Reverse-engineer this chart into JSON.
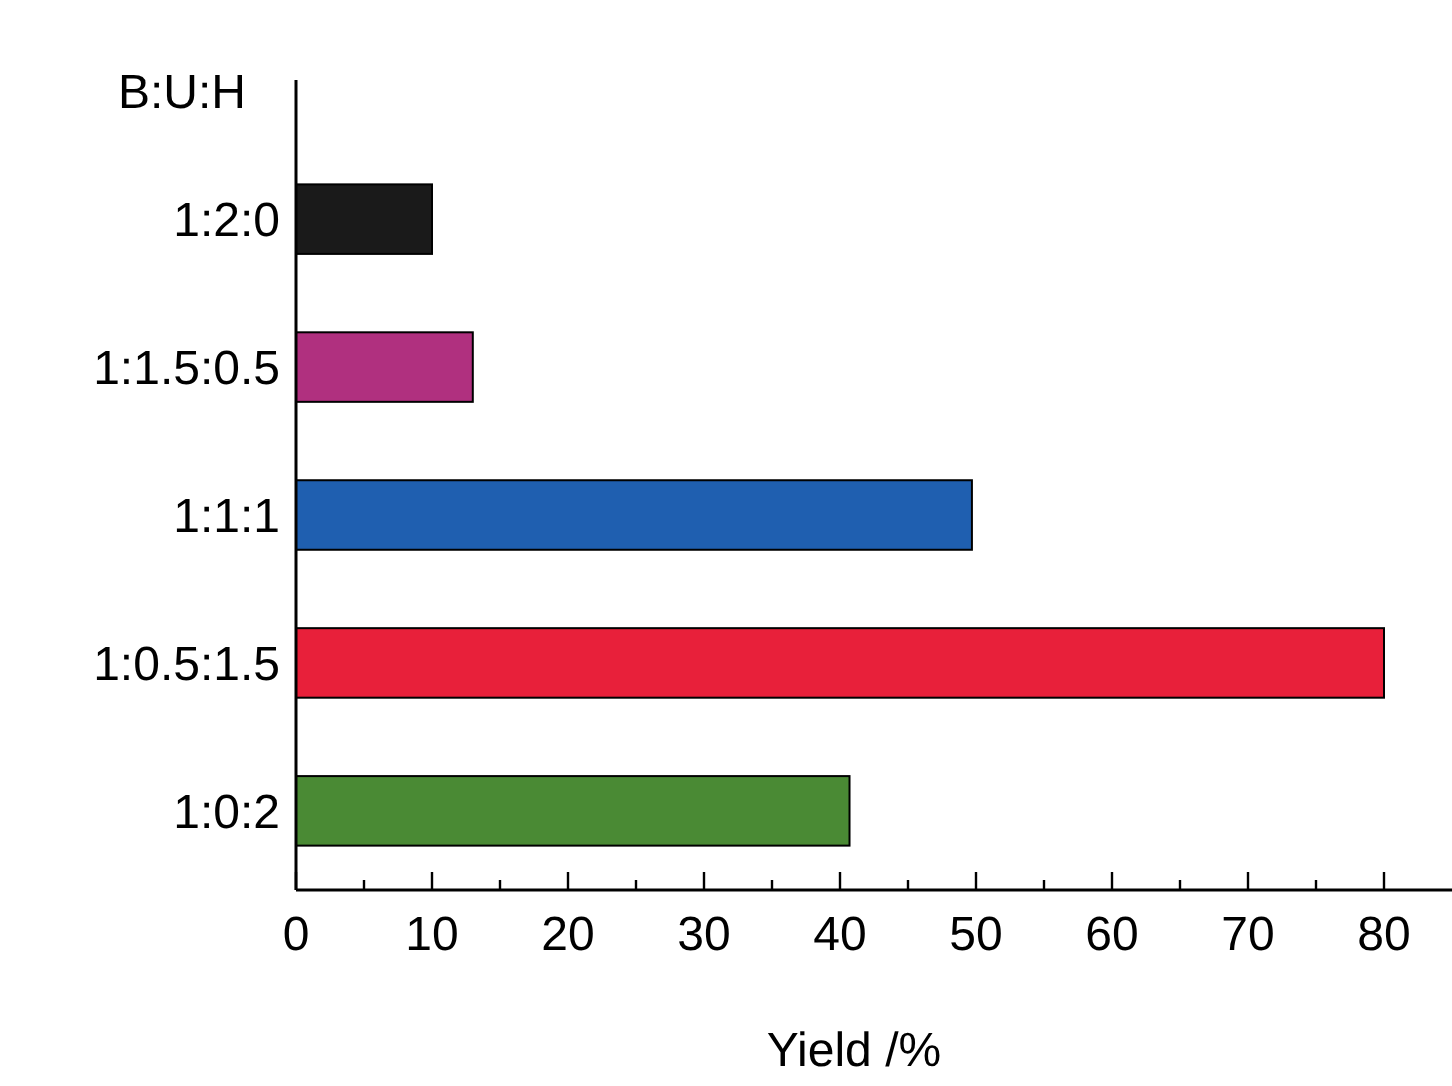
{
  "chart_data": {
    "type": "bar",
    "orientation": "horizontal",
    "ylabel": "B:U:H",
    "xlabel": "Yield /%",
    "categories": [
      "1:2:0",
      "1:1.5:0.5",
      "1:1:1",
      "1:0.5:1.5",
      "1:0:2"
    ],
    "values": [
      10,
      13,
      49.7,
      80,
      40.7
    ],
    "colors": [
      "#1a1a1a",
      "#b0307f",
      "#1f5fb0",
      "#e8203a",
      "#4a8a34"
    ],
    "xlim": [
      0,
      85
    ],
    "xticks": [
      0,
      {
        "value": 5,
        "label": null
      },
      10,
      {
        "value": 15,
        "label": null
      },
      20,
      {
        "value": 25,
        "label": null
      },
      30,
      {
        "value": 35,
        "label": null
      },
      40,
      {
        "value": 45,
        "label": null
      },
      50,
      {
        "value": 55,
        "label": null
      },
      60,
      {
        "value": 65,
        "label": null
      },
      70,
      {
        "value": 75,
        "label": null
      },
      80
    ]
  }
}
